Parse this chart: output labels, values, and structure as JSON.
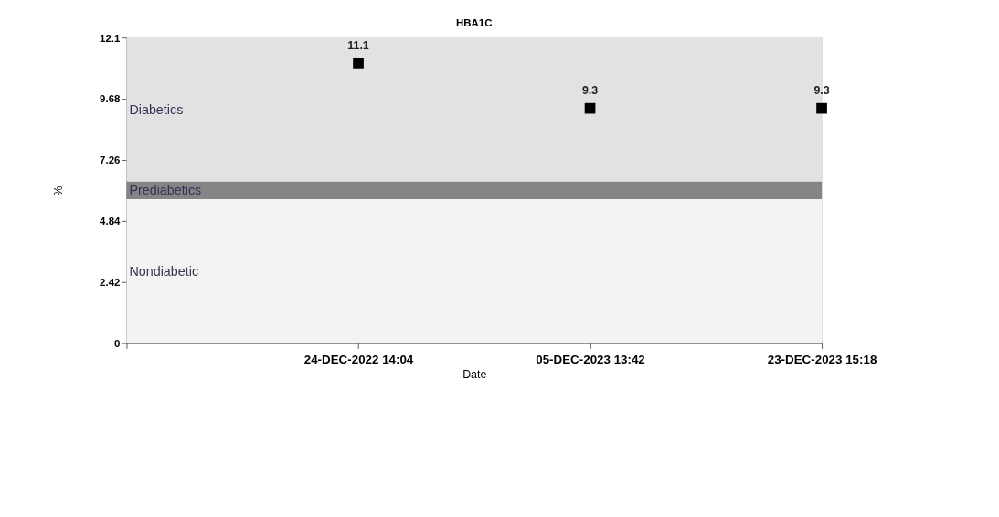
{
  "chart_data": {
    "type": "scatter",
    "title": "HBA1C",
    "xlabel": "Date",
    "ylabel": "%",
    "categories": [
      null,
      "24-DEC-2022 14:04",
      "05-DEC-2023 13:42",
      "23-DEC-2023 15:18"
    ],
    "series": [
      {
        "color": "#000000",
        "values": [
          null,
          11.1,
          9.3,
          9.3
        ]
      }
    ],
    "marker": "square",
    "data_labels": true,
    "ylim": [
      0,
      12.1
    ],
    "yticks": [
      0,
      2.42,
      4.84,
      7.26,
      9.68,
      12.1
    ],
    "bands": [
      {
        "axis": "y",
        "from": 6.4,
        "to": 12.1,
        "label": "Diabetics",
        "color": "#e2e2e2"
      },
      {
        "axis": "y",
        "from": 5.7,
        "to": 6.4,
        "label": "Prediabetics",
        "color": "#858585"
      },
      {
        "axis": "y",
        "from": 0,
        "to": 5.7,
        "label": "Nondiabetic",
        "color": "#f3f3f3"
      }
    ],
    "grid": false
  }
}
